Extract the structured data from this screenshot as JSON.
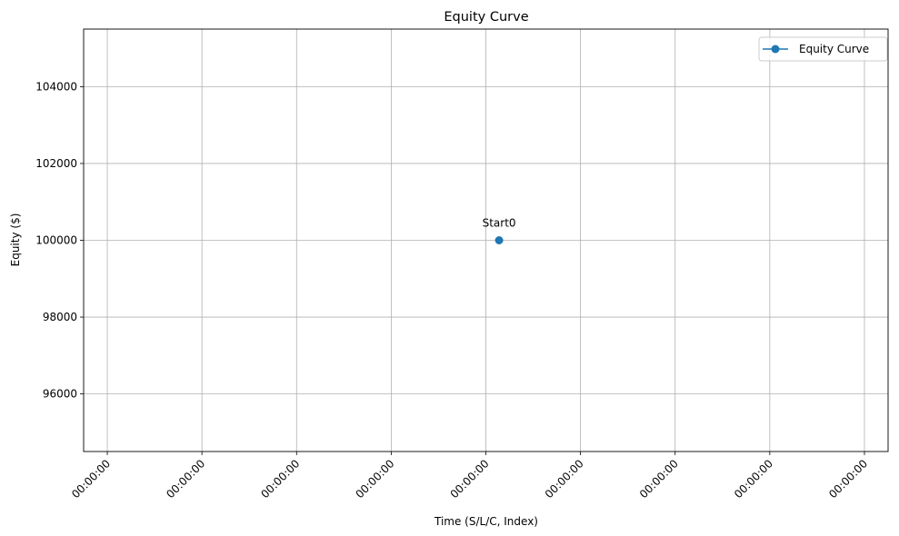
{
  "chart_data": {
    "type": "line",
    "title": "Equity Curve",
    "xlabel": "Time (S/L/C, Index)",
    "ylabel": "Equity ($)",
    "x_tick_labels": [
      "00:00:00",
      "00:00:00",
      "00:00:00",
      "00:00:00",
      "00:00:00",
      "00:00:00",
      "00:00:00",
      "00:00:00",
      "00:00:00"
    ],
    "x_ticks": [
      -0.04,
      -0.03,
      -0.02,
      -0.01,
      0.0,
      0.01,
      0.02,
      0.03,
      0.04
    ],
    "xlim": [
      -0.0425,
      0.0425
    ],
    "y_ticks": [
      96000,
      98000,
      100000,
      102000,
      104000
    ],
    "ylim": [
      94500,
      105500
    ],
    "grid": true,
    "legend_position": "top-right",
    "series": [
      {
        "name": "Equity Curve",
        "color": "#1f77b4",
        "marker": "circle",
        "points": [
          {
            "x": 0.0014,
            "y": 100000
          }
        ]
      }
    ],
    "annotations": [
      {
        "text": "Start0",
        "x": 0.0014,
        "y": 100000
      }
    ]
  }
}
